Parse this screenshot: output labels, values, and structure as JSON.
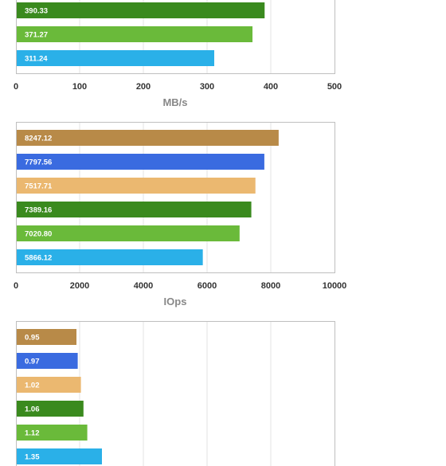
{
  "chart_data": [
    {
      "type": "bar",
      "orientation": "horizontal",
      "xlabel": "MB/s",
      "xlim": [
        0,
        500
      ],
      "xticks": [
        0,
        100,
        200,
        300,
        400,
        500
      ],
      "grid": true,
      "bars": [
        {
          "value": 390.33,
          "label": "390.33",
          "color": "#3a8a1e"
        },
        {
          "value": 371.27,
          "label": "371.27",
          "color": "#6aba3a"
        },
        {
          "value": 311.24,
          "label": "311.24",
          "color": "#2ab0e8"
        }
      ]
    },
    {
      "type": "bar",
      "orientation": "horizontal",
      "xlabel": "IOps",
      "xlim": [
        0,
        10000
      ],
      "xticks": [
        0,
        2000,
        4000,
        6000,
        8000,
        10000
      ],
      "grid": true,
      "bars": [
        {
          "value": 8247.12,
          "label": "8247.12",
          "color": "#b88a48"
        },
        {
          "value": 7797.56,
          "label": "7797.56",
          "color": "#3a6be0"
        },
        {
          "value": 7517.71,
          "label": "7517.71",
          "color": "#ebb870"
        },
        {
          "value": 7389.16,
          "label": "7389.16",
          "color": "#3a8a1e"
        },
        {
          "value": 7020.8,
          "label": "7020.80",
          "color": "#6aba3a"
        },
        {
          "value": 5866.12,
          "label": "5866.12",
          "color": "#2ab0e8"
        }
      ]
    },
    {
      "type": "bar",
      "orientation": "horizontal",
      "xlabel": "",
      "xlim": [
        0,
        5
      ],
      "grid": true,
      "bars": [
        {
          "value": 0.95,
          "label": "0.95",
          "color": "#b88a48"
        },
        {
          "value": 0.97,
          "label": "0.97",
          "color": "#3a6be0"
        },
        {
          "value": 1.02,
          "label": "1.02",
          "color": "#ebb870"
        },
        {
          "value": 1.06,
          "label": "1.06",
          "color": "#3a8a1e"
        },
        {
          "value": 1.12,
          "label": "1.12",
          "color": "#6aba3a"
        },
        {
          "value": 1.35,
          "label": "1.35",
          "color": "#2ab0e8"
        }
      ]
    }
  ]
}
